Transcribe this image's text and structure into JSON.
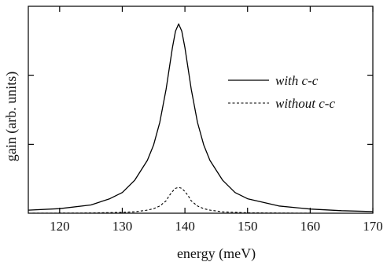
{
  "chart_data": {
    "type": "line",
    "title": "",
    "xlabel": "energy (meV)",
    "ylabel": "gain (arb. units)",
    "xlim": [
      115,
      170
    ],
    "ylim": [
      0,
      1.0
    ],
    "x_ticks": [
      120,
      130,
      140,
      150,
      160,
      170
    ],
    "x_tick_labels": [
      "120",
      "130",
      "140",
      "150",
      "160",
      "170"
    ],
    "y_ticks": [
      0.333,
      0.667
    ],
    "y_tick_labels": [],
    "grid": false,
    "legend_position": "right",
    "series": [
      {
        "name": "with c-c",
        "style": "solid",
        "color": "#000000",
        "x": [
          115,
          120,
          125,
          128,
          130,
          132,
          134,
          135,
          136,
          137,
          137.5,
          138,
          138.5,
          139,
          139.5,
          140,
          140.5,
          141,
          142,
          143,
          144,
          146,
          148,
          150,
          155,
          160,
          165,
          170
        ],
        "y": [
          0.015,
          0.022,
          0.04,
          0.07,
          0.1,
          0.16,
          0.255,
          0.33,
          0.44,
          0.6,
          0.7,
          0.8,
          0.88,
          0.915,
          0.88,
          0.8,
          0.7,
          0.6,
          0.44,
          0.33,
          0.255,
          0.16,
          0.1,
          0.07,
          0.035,
          0.02,
          0.012,
          0.008
        ]
      },
      {
        "name": "without c-c",
        "style": "dashed",
        "color": "#000000",
        "x": [
          115,
          125,
          130,
          132,
          134,
          135,
          136,
          137,
          137.5,
          138,
          138.5,
          139,
          139.5,
          140,
          140.5,
          141,
          142,
          143,
          144,
          146,
          150,
          160,
          170
        ],
        "y": [
          0.0,
          0.001,
          0.004,
          0.007,
          0.015,
          0.022,
          0.035,
          0.06,
          0.085,
          0.105,
          0.12,
          0.125,
          0.12,
          0.105,
          0.085,
          0.06,
          0.035,
          0.022,
          0.015,
          0.007,
          0.002,
          0.0,
          0.0
        ]
      }
    ]
  }
}
